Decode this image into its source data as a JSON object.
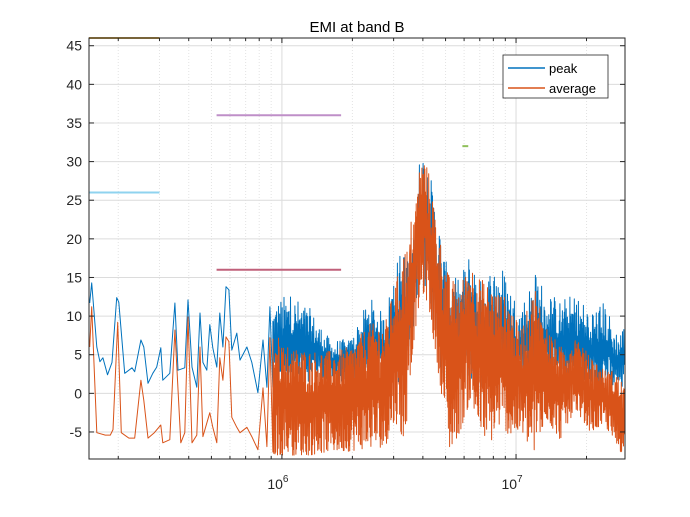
{
  "chart_data": {
    "type": "line",
    "title": "EMI at band B",
    "xlabel": "",
    "ylabel": "",
    "xscale": "log",
    "xlim": [
      150000,
      29200000
    ],
    "ylim": [
      -8.5,
      46
    ],
    "grid": true,
    "minor_grid": true,
    "legend_position": "top-right",
    "yticks": [
      "-5",
      "0",
      "5",
      "10",
      "15",
      "20",
      "25",
      "30",
      "35",
      "40",
      "45"
    ],
    "ytick_values": [
      -5,
      0,
      5,
      10,
      15,
      20,
      25,
      30,
      35,
      40,
      45
    ],
    "xticks": [
      {
        "value": 1000000,
        "base": "10",
        "exp": "6"
      },
      {
        "value": 10000000,
        "base": "10",
        "exp": "7"
      }
    ],
    "x_minor_ticks": [
      200000,
      300000,
      400000,
      500000,
      600000,
      700000,
      800000,
      900000,
      2000000,
      3000000,
      4000000,
      5000000,
      6000000,
      7000000,
      8000000,
      9000000,
      20000000
    ],
    "series": [
      {
        "name": "peak",
        "color": "#0072BD",
        "x": [
          151000,
          154000,
          162000,
          167000,
          172000,
          180000,
          188000,
          197000,
          201000,
          213000,
          229000,
          235000,
          250000,
          257000,
          268000,
          281000,
          292000,
          304000,
          310000,
          332000,
          349000,
          360000,
          385000,
          397000,
          413000,
          433000,
          447000,
          460000,
          478000,
          492000,
          507000,
          527000,
          543000,
          560000,
          577000,
          594000,
          611000,
          642000,
          662000,
          709000,
          744000,
          790000,
          830000,
          863000,
          889000,
          915000
        ],
        "y": [
          11.7,
          14.3,
          6.0,
          4.1,
          4.6,
          2.4,
          4.0,
          12.4,
          11.8,
          2.6,
          3.3,
          2.8,
          6.9,
          6.0,
          1.3,
          2.6,
          3.4,
          5.9,
          1.7,
          2.6,
          11.7,
          3.0,
          3.3,
          12.1,
          3.4,
          0.8,
          10.4,
          4.0,
          3.0,
          8.9,
          5.9,
          3.4,
          10.4,
          6.0,
          13.8,
          13.4,
          5.6,
          7.8,
          4.3,
          6.0,
          4.0,
          0.1,
          6.9,
          0.8,
          11.2,
          0.8
        ],
        "dense_band": {
          "x": [
            915000,
            1082000,
            1317000,
            1604000,
            1953000,
            2377000,
            2755000,
            3040000,
            3360000,
            3520000,
            3700000,
            3890000,
            4080000,
            4290000,
            4590000,
            4970000,
            5220000,
            5760000,
            6360000,
            7020000,
            7740000,
            8550000,
            9420000,
            10400000,
            12100000,
            13300000,
            15400000,
            17900000,
            20700000,
            24000000,
            26500000,
            29200000
          ],
          "upper": [
            12,
            13,
            11,
            7,
            7,
            12.5,
            10,
            17,
            19.5,
            15.6,
            23.4,
            31.5,
            32.4,
            28.5,
            24.7,
            17.7,
            15,
            15,
            18.8,
            14.7,
            16.4,
            17.3,
            14.3,
            11.2,
            16,
            13.8,
            12.1,
            13,
            11.2,
            12,
            8.2,
            9
          ],
          "lower": [
            0,
            1,
            1.5,
            1.5,
            0.5,
            1.3,
            2,
            1,
            0,
            4,
            9,
            13,
            14,
            11,
            5,
            -1,
            -2,
            0,
            1,
            0,
            0,
            0.5,
            0,
            1,
            0,
            1,
            0.5,
            1,
            0,
            0.5,
            0,
            0
          ]
        }
      },
      {
        "name": "average",
        "color": "#D95319",
        "x": [
          151000,
          154000,
          162000,
          176000,
          185000,
          190000,
          199000,
          206000,
          222000,
          235000,
          250000,
          257000,
          268000,
          285000,
          304000,
          310000,
          332000,
          349000,
          370000,
          385000,
          397000,
          413000,
          433000,
          447000,
          460000,
          492000,
          507000,
          527000,
          543000,
          560000,
          577000,
          594000,
          611000,
          642000,
          662000,
          709000,
          744000,
          790000,
          830000,
          863000,
          889000,
          915000
        ],
        "y": [
          6.0,
          11.2,
          -5.1,
          -5.4,
          -5.4,
          -4.7,
          9.2,
          -5.1,
          -5.8,
          -5.8,
          1.7,
          -0.9,
          -5.8,
          -5.1,
          -4.1,
          -6.4,
          -6.0,
          8.2,
          -6.4,
          -5.1,
          9.9,
          -6.4,
          -5.4,
          6.0,
          -5.6,
          -2.5,
          -4.4,
          -6.4,
          4.6,
          1.7,
          7.3,
          6.7,
          -3.1,
          -4.4,
          -5.1,
          -4.4,
          -5.6,
          -7.3,
          0.7,
          -6.9,
          7.2,
          -7.6
        ],
        "dense_band": {
          "x": [
            915000,
            1082000,
            1317000,
            1604000,
            1953000,
            2377000,
            2755000,
            3040000,
            3360000,
            3520000,
            3700000,
            3890000,
            4080000,
            4290000,
            4590000,
            4970000,
            5220000,
            5760000,
            6360000,
            7020000,
            7740000,
            8550000,
            9420000,
            10400000,
            12100000,
            13300000,
            15400000,
            17900000,
            20700000,
            24000000,
            26500000,
            29200000
          ],
          "upper": [
            8,
            6,
            5.5,
            5.5,
            6,
            9,
            9,
            14,
            19,
            22,
            24,
            30,
            30.5,
            28,
            22,
            17,
            15,
            14,
            17,
            15,
            14,
            13,
            12,
            8,
            14,
            9,
            6,
            7,
            5,
            3,
            3,
            1
          ],
          "lower": [
            -8,
            -8,
            -8,
            -7.5,
            -7.5,
            -7,
            -7,
            -3.5,
            -6.5,
            2,
            8,
            12,
            13,
            10,
            4,
            -3,
            -7.5,
            -5,
            -1,
            -5,
            -6.5,
            -4,
            -5.5,
            -5,
            -8,
            -3,
            -6,
            -2,
            -5,
            -4,
            -7,
            -8
          ]
        }
      }
    ],
    "limit_lines": [
      {
        "y": 46,
        "x": [
          150000,
          300000
        ],
        "color": "#c9a24e"
      },
      {
        "y": 26,
        "x": [
          150000,
          300000
        ],
        "color": "#8fd3ef"
      },
      {
        "y": 36,
        "x": [
          526000,
          1790000
        ],
        "color": "#bf8fc8"
      },
      {
        "y": 16,
        "x": [
          526000,
          1790000
        ],
        "color": "#c0607a"
      },
      {
        "y": 32,
        "x": [
          5900000,
          6250000
        ],
        "color": "#8fbf5a"
      }
    ]
  }
}
